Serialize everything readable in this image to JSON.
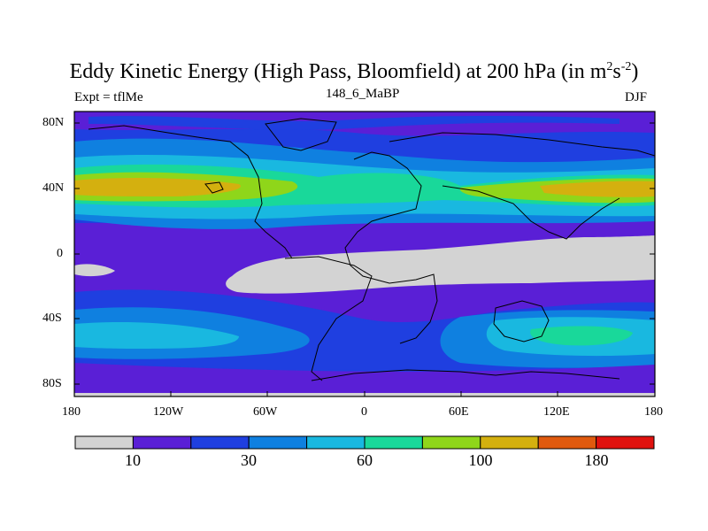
{
  "title": {
    "main": "Eddy Kinetic Energy (High Pass, Bloomfield) at 200 hPa (in m",
    "sup1": "2",
    "mid": "s",
    "sup2": "-2",
    "end": ")"
  },
  "left_label": "Expt = tflMe",
  "center_label": "148_6_MaBP",
  "right_label": "DJF",
  "axes": {
    "y_ticks": [
      "80N",
      "40N",
      "0",
      "40S",
      "80S"
    ],
    "x_ticks": [
      "180",
      "120W",
      "60W",
      "0",
      "60E",
      "120E",
      "180"
    ]
  },
  "colorbar": {
    "colors": [
      "#d3d3d3",
      "#5a1fd6",
      "#1f3fe0",
      "#0f80e0",
      "#19b8e0",
      "#19d89a",
      "#8fd61a",
      "#d4b00f",
      "#e05a0f",
      "#e0120f"
    ],
    "labels": [
      "10",
      "30",
      "60",
      "100",
      "180"
    ]
  }
}
